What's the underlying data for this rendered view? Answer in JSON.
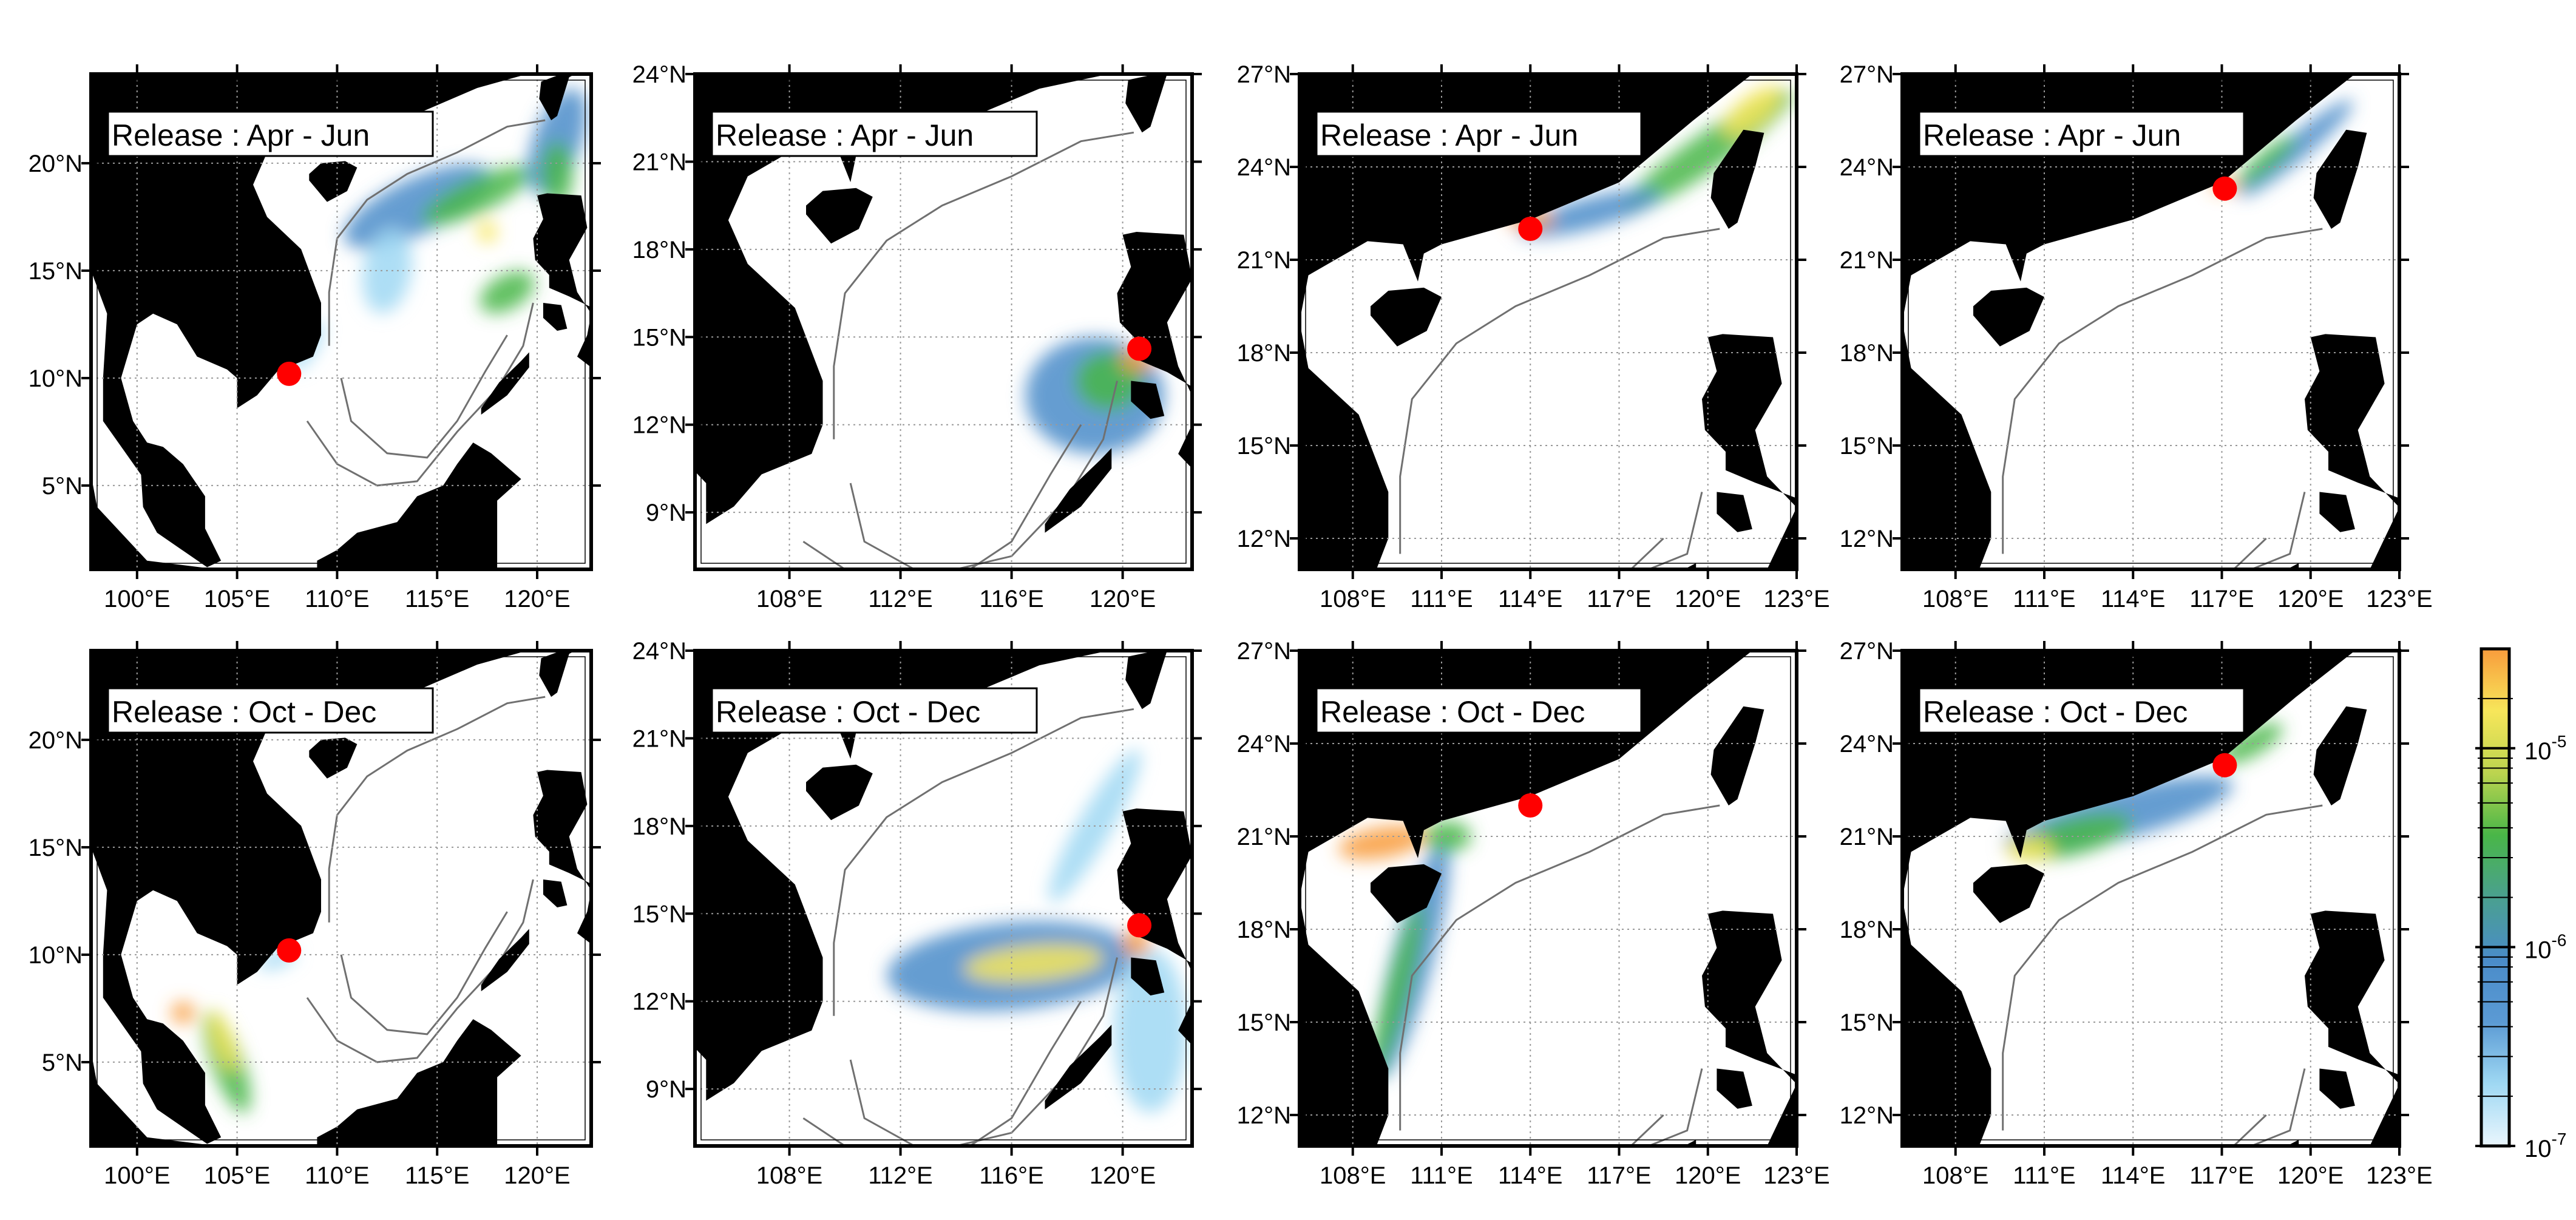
{
  "figure": {
    "colors": {
      "land": "#000000",
      "ocean": "#ffffff",
      "release_site": "#ff0000",
      "contour": "#707070"
    },
    "panels": [
      {
        "label": "Release : Apr - Jun",
        "release_site": [
          107.6,
          10.2
        ],
        "lon_range": [
          97.7,
          122.7
        ],
        "lat_range": [
          1.1,
          24.15
        ],
        "x_ticks": [
          {
            "v": 100,
            "t": "100°E"
          },
          {
            "v": 105,
            "t": "105°E"
          },
          {
            "v": 110,
            "t": "110°E"
          },
          {
            "v": 115,
            "t": "115°E"
          },
          {
            "v": 120,
            "t": "120°E"
          }
        ],
        "y_ticks": [
          {
            "v": 5,
            "t": "5°N"
          },
          {
            "v": 10,
            "t": "10°N"
          },
          {
            "v": 15,
            "t": "15°N"
          },
          {
            "v": 20,
            "t": "20°N"
          }
        ]
      },
      {
        "label": "Release : Apr - Jun",
        "release_site": [
          120.6,
          14.6
        ],
        "lon_range": [
          104.6,
          122.5
        ],
        "lat_range": [
          7.05,
          24
        ],
        "x_ticks": [
          {
            "v": 108,
            "t": "108°E"
          },
          {
            "v": 112,
            "t": "112°E"
          },
          {
            "v": 116,
            "t": "116°E"
          },
          {
            "v": 120,
            "t": "120°E"
          }
        ],
        "y_ticks": [
          {
            "v": 9,
            "t": "9°N"
          },
          {
            "v": 12,
            "t": "12°N"
          },
          {
            "v": 15,
            "t": "15°N"
          },
          {
            "v": 18,
            "t": "18°N"
          },
          {
            "v": 21,
            "t": "21°N"
          },
          {
            "v": 24,
            "t": "24°N"
          }
        ]
      },
      {
        "label": "Release : Apr - Jun",
        "release_site": [
          114.0,
          22.0
        ],
        "lon_range": [
          106.2,
          123
        ],
        "lat_range": [
          11.0,
          27
        ],
        "x_ticks": [
          {
            "v": 108,
            "t": "108°E"
          },
          {
            "v": 111,
            "t": "111°E"
          },
          {
            "v": 114,
            "t": "114°E"
          },
          {
            "v": 117,
            "t": "117°E"
          },
          {
            "v": 120,
            "t": "120°E"
          },
          {
            "v": 123,
            "t": "123°E"
          }
        ],
        "y_ticks": [
          {
            "v": 12,
            "t": "12°N"
          },
          {
            "v": 15,
            "t": "15°N"
          },
          {
            "v": 18,
            "t": "18°N"
          },
          {
            "v": 21,
            "t": "21°N"
          },
          {
            "v": 24,
            "t": "24°N"
          },
          {
            "v": 27,
            "t": "27°N"
          }
        ]
      },
      {
        "label": "Release : Apr - Jun",
        "release_site": [
          117.1,
          23.3
        ],
        "lon_range": [
          106.2,
          123
        ],
        "lat_range": [
          11.0,
          27
        ],
        "x_ticks": [
          {
            "v": 108,
            "t": "108°E"
          },
          {
            "v": 111,
            "t": "111°E"
          },
          {
            "v": 114,
            "t": "114°E"
          },
          {
            "v": 117,
            "t": "117°E"
          },
          {
            "v": 120,
            "t": "120°E"
          },
          {
            "v": 123,
            "t": "123°E"
          }
        ],
        "y_ticks": [
          {
            "v": 12,
            "t": "12°N"
          },
          {
            "v": 15,
            "t": "15°N"
          },
          {
            "v": 18,
            "t": "18°N"
          },
          {
            "v": 21,
            "t": "21°N"
          },
          {
            "v": 24,
            "t": "24°N"
          },
          {
            "v": 27,
            "t": "27°N"
          }
        ]
      },
      {
        "label": "Release : Oct - Dec",
        "release_site": [
          107.6,
          10.2
        ],
        "lon_range": [
          97.7,
          122.7
        ],
        "lat_range": [
          1.1,
          24.15
        ],
        "x_ticks": [
          {
            "v": 100,
            "t": "100°E"
          },
          {
            "v": 105,
            "t": "105°E"
          },
          {
            "v": 110,
            "t": "110°E"
          },
          {
            "v": 115,
            "t": "115°E"
          },
          {
            "v": 120,
            "t": "120°E"
          }
        ],
        "y_ticks": [
          {
            "v": 5,
            "t": "5°N"
          },
          {
            "v": 10,
            "t": "10°N"
          },
          {
            "v": 15,
            "t": "15°N"
          },
          {
            "v": 20,
            "t": "20°N"
          }
        ]
      },
      {
        "label": "Release : Oct - Dec",
        "release_site": [
          120.6,
          14.6
        ],
        "lon_range": [
          104.6,
          122.5
        ],
        "lat_range": [
          7.05,
          24
        ],
        "x_ticks": [
          {
            "v": 108,
            "t": "108°E"
          },
          {
            "v": 112,
            "t": "112°E"
          },
          {
            "v": 116,
            "t": "116°E"
          },
          {
            "v": 120,
            "t": "120°E"
          }
        ],
        "y_ticks": [
          {
            "v": 9,
            "t": "9°N"
          },
          {
            "v": 12,
            "t": "12°N"
          },
          {
            "v": 15,
            "t": "15°N"
          },
          {
            "v": 18,
            "t": "18°N"
          },
          {
            "v": 21,
            "t": "21°N"
          },
          {
            "v": 24,
            "t": "24°N"
          }
        ]
      },
      {
        "label": "Release : Oct - Dec",
        "release_site": [
          114.0,
          22.0
        ],
        "lon_range": [
          106.2,
          123
        ],
        "lat_range": [
          11.0,
          27
        ],
        "x_ticks": [
          {
            "v": 108,
            "t": "108°E"
          },
          {
            "v": 111,
            "t": "111°E"
          },
          {
            "v": 114,
            "t": "114°E"
          },
          {
            "v": 117,
            "t": "117°E"
          },
          {
            "v": 120,
            "t": "120°E"
          },
          {
            "v": 123,
            "t": "123°E"
          }
        ],
        "y_ticks": [
          {
            "v": 12,
            "t": "12°N"
          },
          {
            "v": 15,
            "t": "15°N"
          },
          {
            "v": 18,
            "t": "18°N"
          },
          {
            "v": 21,
            "t": "21°N"
          },
          {
            "v": 24,
            "t": "24°N"
          },
          {
            "v": 27,
            "t": "27°N"
          }
        ]
      },
      {
        "label": "Release : Oct - Dec",
        "release_site": [
          117.1,
          23.3
        ],
        "lon_range": [
          106.2,
          123
        ],
        "lat_range": [
          11.0,
          27
        ],
        "x_ticks": [
          {
            "v": 108,
            "t": "108°E"
          },
          {
            "v": 111,
            "t": "111°E"
          },
          {
            "v": 114,
            "t": "114°E"
          },
          {
            "v": 117,
            "t": "117°E"
          },
          {
            "v": 120,
            "t": "120°E"
          },
          {
            "v": 123,
            "t": "123°E"
          }
        ],
        "y_ticks": [
          {
            "v": 12,
            "t": "12°N"
          },
          {
            "v": 15,
            "t": "15°N"
          },
          {
            "v": 18,
            "t": "18°N"
          },
          {
            "v": 21,
            "t": "21°N"
          },
          {
            "v": 24,
            "t": "24°N"
          },
          {
            "v": 27,
            "t": "27°N"
          }
        ]
      }
    ],
    "colorbar": {
      "scale": "log",
      "range": [
        "1e-7",
        "3e-5"
      ],
      "tick_labels": [
        {
          "base": "10",
          "exp": "-7"
        },
        {
          "base": "10",
          "exp": "-6"
        },
        {
          "base": "10",
          "exp": "-5"
        }
      ],
      "colors": [
        "#eaf6fd",
        "#9fd8f3",
        "#5b9ad4",
        "#4a8cc9",
        "#4aa08f",
        "#49b648",
        "#bcd44f",
        "#f7e65a",
        "#f89c3c"
      ]
    }
  }
}
